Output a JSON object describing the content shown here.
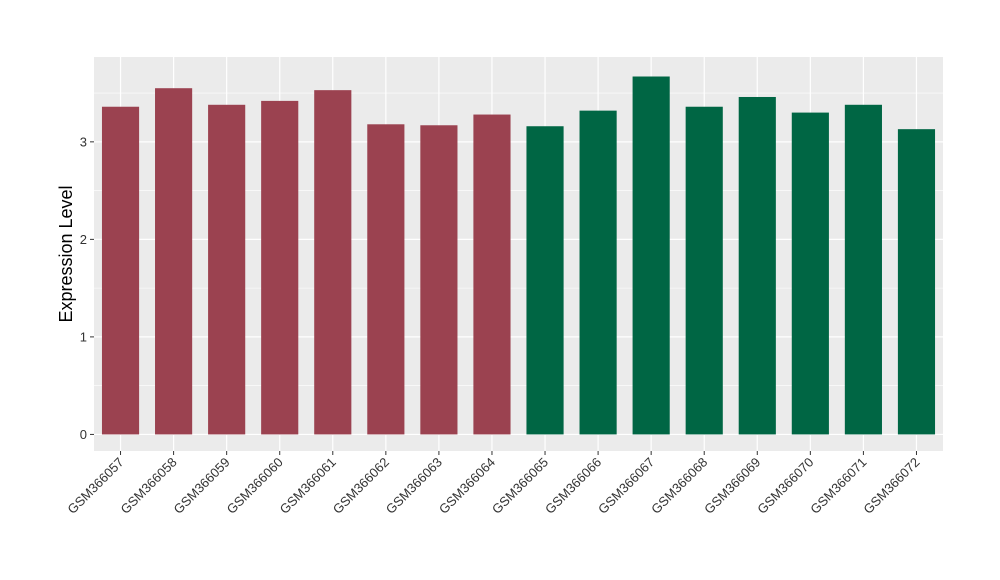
{
  "chart_data": {
    "type": "bar",
    "title": "",
    "xlabel": "",
    "ylabel": "Expression Level",
    "ylim": [
      -0.17,
      3.87
    ],
    "yticks": [
      0,
      1,
      2,
      3
    ],
    "grid": true,
    "legend": "none",
    "categories": [
      "GSM366057",
      "GSM366058",
      "GSM366059",
      "GSM366060",
      "GSM366061",
      "GSM366062",
      "GSM366063",
      "GSM366064",
      "GSM366065",
      "GSM366066",
      "GSM366067",
      "GSM366068",
      "GSM366069",
      "GSM366070",
      "GSM366071",
      "GSM366072"
    ],
    "values": [
      3.36,
      3.55,
      3.38,
      3.42,
      3.53,
      3.18,
      3.17,
      3.28,
      3.16,
      3.32,
      3.67,
      3.36,
      3.46,
      3.3,
      3.38,
      3.13
    ],
    "bar_colors": [
      "#9b4250",
      "#9b4250",
      "#9b4250",
      "#9b4250",
      "#9b4250",
      "#9b4250",
      "#9b4250",
      "#9b4250",
      "#006644",
      "#006644",
      "#006644",
      "#006644",
      "#006644",
      "#006644",
      "#006644",
      "#006644"
    ],
    "panel_background": "#ebebeb",
    "gridline_color": "#ffffff",
    "tick_color": "#333333"
  }
}
